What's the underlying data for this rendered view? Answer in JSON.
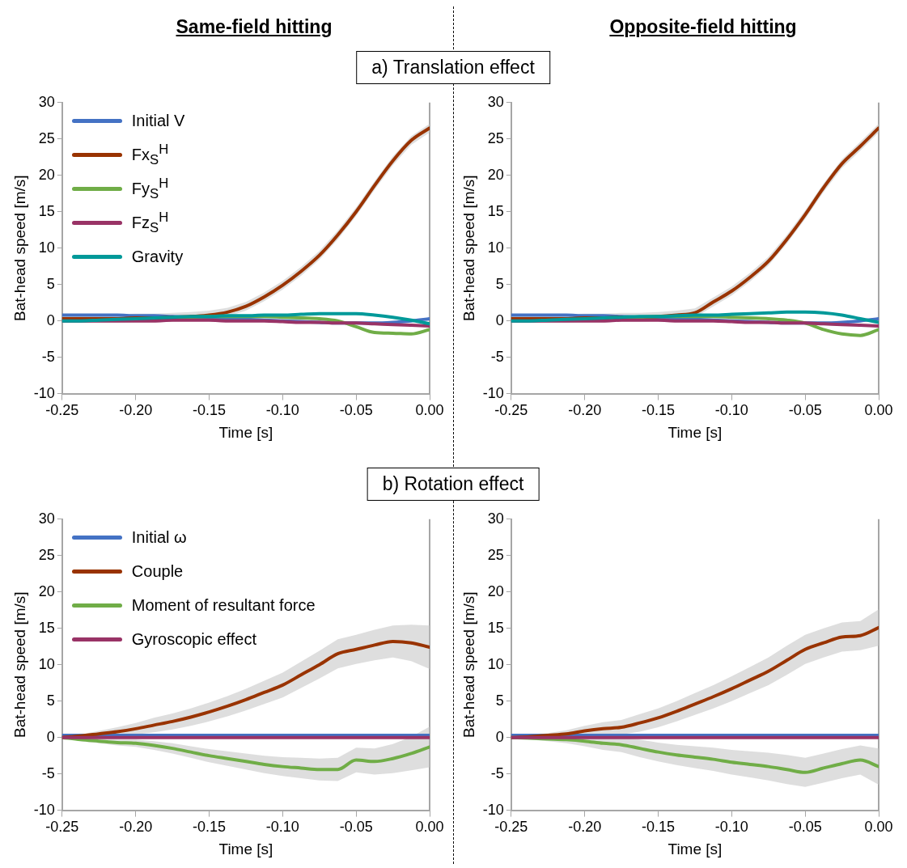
{
  "chart_data": [
    {
      "type": "line",
      "title": "Same-field hitting",
      "subtitle": "a) Translation effect",
      "xlabel": "Time [s]",
      "ylabel": "Bat-head speed [m/s]",
      "xlim": [
        -0.25,
        0
      ],
      "ylim": [
        -10,
        30
      ],
      "xticks": [
        -0.25,
        {
          "value": -0.2,
          "label": "-0.20"
        },
        -0.15,
        {
          "value": -0.1,
          "label": "-0.10"
        },
        -0.05,
        {
          "value": 0,
          "label": "0.00"
        }
      ],
      "yticks": [
        -10,
        -5,
        0,
        5,
        10,
        15,
        20,
        25,
        30
      ],
      "grid": false,
      "legend": "top left",
      "ref_lines": [
        {
          "axis": "x",
          "value": 0,
          "color": "#a6a6a6"
        }
      ],
      "x": [
        -0.25,
        -0.2375,
        -0.225,
        -0.2125,
        -0.2,
        -0.1875,
        -0.175,
        -0.1625,
        -0.15,
        -0.1375,
        -0.125,
        -0.1125,
        -0.1,
        -0.0875,
        -0.075,
        -0.0625,
        -0.05,
        -0.0375,
        -0.025,
        -0.0125,
        0
      ],
      "series": [
        {
          "name": "Initial V",
          "color": "#4472c4",
          "values": [
            0.8,
            0.8,
            0.8,
            0.8,
            0.7,
            0.7,
            0.6,
            0.5,
            0.4,
            0.3,
            0.2,
            0.1,
            0,
            -0.1,
            -0.2,
            -0.3,
            -0.3,
            -0.3,
            -0.2,
            0,
            0.3
          ]
        },
        {
          "name": "Fx$_{S}$$^{H}$",
          "color": "#993300",
          "values": [
            0.3,
            0.3,
            0.3,
            0.3,
            0.4,
            0.4,
            0.5,
            0.6,
            0.8,
            1.2,
            2.0,
            3.3,
            4.9,
            6.8,
            9.0,
            11.8,
            15.0,
            18.6,
            22.0,
            24.8,
            26.5
          ],
          "upper": [
            0.9,
            0.9,
            0.9,
            0.9,
            1.0,
            1.0,
            1.1,
            1.2,
            1.4,
            1.8,
            2.6,
            3.9,
            5.5,
            7.4,
            9.6,
            12.4,
            15.6,
            19.2,
            22.6,
            25.4,
            27.1
          ],
          "lower": [
            -0.3,
            -0.3,
            -0.3,
            -0.3,
            -0.2,
            -0.2,
            -0.1,
            0,
            0.2,
            0.6,
            1.4,
            2.7,
            4.3,
            6.2,
            8.4,
            11.2,
            14.4,
            18.0,
            21.4,
            24.2,
            25.9
          ]
        },
        {
          "name": "Fy$_{S}$$^{H}$",
          "color": "#70ad47",
          "values": [
            null,
            null,
            null,
            null,
            null,
            null,
            0.4,
            0.5,
            0.6,
            0.6,
            0.6,
            0.6,
            0.5,
            0.4,
            0.3,
            0,
            -0.8,
            -1.6,
            -1.7,
            -1.8,
            -1.2
          ]
        },
        {
          "name": "Fz$_{S}$$^{H}$",
          "color": "#993366",
          "values": [
            0,
            0,
            0,
            0,
            0,
            0,
            0.1,
            0.1,
            0.1,
            0,
            0,
            0,
            -0.1,
            -0.2,
            -0.2,
            -0.3,
            -0.3,
            -0.4,
            -0.5,
            -0.6,
            -0.7
          ]
        },
        {
          "name": "Gravity",
          "color": "#009999",
          "values": [
            0,
            0,
            0.1,
            0.2,
            0.3,
            0.4,
            0.5,
            0.6,
            0.6,
            0.7,
            0.7,
            0.8,
            0.8,
            0.9,
            1.0,
            1.0,
            1.0,
            0.8,
            0.5,
            0.1,
            -0.4
          ]
        }
      ]
    },
    {
      "type": "line",
      "title": "Opposite-field hitting",
      "xlabel": "Time [s]",
      "ylabel": "Bat-head speed [m/s]",
      "xlim": [
        -0.25,
        0
      ],
      "ylim": [
        -10,
        30
      ],
      "xticks": [
        -0.25,
        {
          "value": -0.2,
          "label": "-0.20"
        },
        -0.15,
        {
          "value": -0.1,
          "label": "-0.10"
        },
        -0.05,
        {
          "value": 0,
          "label": "0.00"
        }
      ],
      "yticks": [
        -10,
        -5,
        0,
        5,
        10,
        15,
        20,
        25,
        30
      ],
      "grid": false,
      "ref_lines": [
        {
          "axis": "x",
          "value": 0,
          "color": "#a6a6a6"
        }
      ],
      "x": [
        -0.25,
        -0.2375,
        -0.225,
        -0.2125,
        -0.2,
        -0.1875,
        -0.175,
        -0.1625,
        -0.15,
        -0.1375,
        -0.125,
        -0.1125,
        -0.1,
        -0.0875,
        -0.075,
        -0.0625,
        -0.05,
        -0.0375,
        -0.025,
        -0.0125,
        0
      ],
      "series": [
        {
          "color": "#4472c4",
          "values": [
            0.8,
            0.8,
            0.8,
            0.8,
            0.7,
            0.7,
            0.6,
            0.5,
            0.4,
            0.3,
            0.2,
            0.1,
            0,
            -0.1,
            -0.2,
            -0.3,
            -0.3,
            -0.3,
            -0.2,
            0,
            0.3
          ]
        },
        {
          "color": "#993300",
          "values": [
            0.3,
            0.3,
            0.3,
            0.3,
            0.4,
            0.4,
            0.5,
            0.5,
            0.6,
            0.8,
            1.1,
            2.6,
            4.1,
            6.0,
            8.2,
            11.2,
            14.6,
            18.3,
            21.6,
            24.0,
            26.5
          ],
          "upper": [
            0.9,
            0.9,
            0.9,
            0.9,
            1.0,
            1.0,
            1.1,
            1.1,
            1.2,
            1.4,
            1.7,
            3.2,
            4.7,
            6.6,
            8.8,
            11.8,
            15.2,
            18.9,
            22.2,
            24.6,
            27.1
          ],
          "lower": [
            -0.3,
            -0.3,
            -0.3,
            -0.3,
            -0.2,
            -0.2,
            -0.1,
            -0.1,
            0,
            0.2,
            0.5,
            2.0,
            3.5,
            5.4,
            7.6,
            10.6,
            14.0,
            17.7,
            21.0,
            23.4,
            25.9
          ]
        },
        {
          "color": "#70ad47",
          "values": [
            null,
            null,
            null,
            null,
            null,
            null,
            0.4,
            0.5,
            0.6,
            0.6,
            0.6,
            0.6,
            0.5,
            0.4,
            0.3,
            0.1,
            -0.3,
            -1.2,
            -1.8,
            -2.0,
            -1.2
          ]
        },
        {
          "color": "#993366",
          "values": [
            0,
            0,
            0,
            0,
            0,
            0,
            0.1,
            0.1,
            0.1,
            0,
            0,
            0,
            -0.1,
            -0.2,
            -0.2,
            -0.3,
            -0.3,
            -0.4,
            -0.5,
            -0.6,
            -0.7
          ]
        },
        {
          "color": "#009999",
          "values": [
            0,
            0,
            0.1,
            0.2,
            0.3,
            0.4,
            0.5,
            0.6,
            0.6,
            0.7,
            0.8,
            0.8,
            0.9,
            1.0,
            1.1,
            1.2,
            1.2,
            1.1,
            0.8,
            0.3,
            -0.2
          ]
        }
      ]
    },
    {
      "type": "line",
      "subtitle": "b) Rotation effect",
      "xlabel": "Time [s]",
      "ylabel": "Bat-head speed [m/s]",
      "xlim": [
        -0.25,
        0
      ],
      "ylim": [
        -10,
        30
      ],
      "xticks": [
        -0.25,
        {
          "value": -0.2,
          "label": "-0.20"
        },
        -0.15,
        {
          "value": -0.1,
          "label": "-0.10"
        },
        -0.05,
        {
          "value": 0,
          "label": "0.00"
        }
      ],
      "yticks": [
        -10,
        -5,
        0,
        5,
        10,
        15,
        20,
        25,
        30
      ],
      "grid": false,
      "legend": "top left",
      "ref_lines": [
        {
          "axis": "x",
          "value": 0,
          "color": "#a6a6a6"
        }
      ],
      "x": [
        -0.25,
        -0.2375,
        -0.225,
        -0.2125,
        -0.2,
        -0.1875,
        -0.175,
        -0.1625,
        -0.15,
        -0.1375,
        -0.125,
        -0.1125,
        -0.1,
        -0.0875,
        -0.075,
        -0.0625,
        -0.05,
        -0.0375,
        -0.025,
        -0.0125,
        0
      ],
      "series": [
        {
          "name": "Initial ω",
          "color": "#4472c4",
          "values": [
            0.3,
            0.3,
            0.3,
            0.3,
            0.3,
            0.3,
            0.3,
            0.3,
            0.3,
            0.3,
            0.3,
            0.3,
            0.3,
            0.3,
            0.3,
            0.3,
            0.3,
            0.3,
            0.3,
            0.3,
            0.3
          ]
        },
        {
          "name": "Couple",
          "color": "#993300",
          "values": [
            0,
            0.2,
            0.5,
            0.8,
            1.2,
            1.7,
            2.2,
            2.8,
            3.5,
            4.3,
            5.2,
            6.2,
            7.2,
            8.6,
            10.0,
            11.5,
            12.1,
            12.7,
            13.2,
            13.0,
            12.4
          ],
          "upper": [
            0,
            0.4,
            0.9,
            1.4,
            2.0,
            2.7,
            3.3,
            4.0,
            4.8,
            5.7,
            6.7,
            7.8,
            8.9,
            10.4,
            11.9,
            13.5,
            14.1,
            14.8,
            15.4,
            15.5,
            15.4
          ],
          "lower": [
            0,
            0,
            0.1,
            0.2,
            0.4,
            0.7,
            1.1,
            1.6,
            2.2,
            2.9,
            3.7,
            4.6,
            5.5,
            6.8,
            8.1,
            9.5,
            10.1,
            10.6,
            11.0,
            10.5,
            9.4
          ]
        },
        {
          "name": "Moment of resultant force",
          "color": "#70ad47",
          "values": [
            0,
            -0.3,
            -0.5,
            -0.7,
            -0.8,
            -1.1,
            -1.5,
            -2.0,
            -2.5,
            -2.9,
            -3.3,
            -3.7,
            -4.0,
            -4.2,
            -4.4,
            -4.4,
            -3.1,
            -3.3,
            -2.9,
            -2.2,
            -1.3
          ],
          "upper": [
            0,
            -0.1,
            -0.2,
            -0.3,
            -0.3,
            -0.5,
            -0.8,
            -1.2,
            -1.6,
            -1.9,
            -2.2,
            -2.5,
            -2.7,
            -2.8,
            -2.9,
            -2.8,
            -1.4,
            -1.5,
            -0.9,
            0.1,
            1.5
          ],
          "lower": [
            0,
            -0.5,
            -0.8,
            -1.1,
            -1.3,
            -1.7,
            -2.2,
            -2.8,
            -3.4,
            -3.9,
            -4.4,
            -4.9,
            -5.3,
            -5.6,
            -5.9,
            -6.0,
            -4.8,
            -5.1,
            -4.9,
            -4.5,
            -4.1
          ]
        },
        {
          "name": "Gyroscopic effect",
          "color": "#993366",
          "values": [
            0,
            0,
            0,
            0,
            0,
            0,
            0,
            0,
            0,
            0,
            0,
            0,
            0,
            0,
            0,
            0,
            0,
            0,
            0,
            0,
            0
          ]
        }
      ]
    },
    {
      "type": "line",
      "xlabel": "Time [s]",
      "ylabel": "Bat-head speed [m/s]",
      "xlim": [
        -0.25,
        0
      ],
      "ylim": [
        -10,
        30
      ],
      "xticks": [
        -0.25,
        {
          "value": -0.2,
          "label": "-0.20"
        },
        -0.15,
        {
          "value": -0.1,
          "label": "-0.10"
        },
        -0.05,
        {
          "value": 0,
          "label": "0.00"
        }
      ],
      "yticks": [
        -10,
        -5,
        0,
        5,
        10,
        15,
        20,
        25,
        30
      ],
      "grid": false,
      "ref_lines": [
        {
          "axis": "x",
          "value": 0,
          "color": "#a6a6a6"
        }
      ],
      "x": [
        -0.25,
        -0.2375,
        -0.225,
        -0.2125,
        -0.2,
        -0.1875,
        -0.175,
        -0.1625,
        -0.15,
        -0.1375,
        -0.125,
        -0.1125,
        -0.1,
        -0.0875,
        -0.075,
        -0.0625,
        -0.05,
        -0.0375,
        -0.025,
        -0.0125,
        0
      ],
      "series": [
        {
          "color": "#4472c4",
          "values": [
            0.3,
            0.3,
            0.3,
            0.3,
            0.3,
            0.3,
            0.3,
            0.3,
            0.3,
            0.3,
            0.3,
            0.3,
            0.3,
            0.3,
            0.3,
            0.3,
            0.3,
            0.3,
            0.3,
            0.3,
            0.3
          ]
        },
        {
          "color": "#993300",
          "values": [
            0,
            0.1,
            0.3,
            0.5,
            0.9,
            1.2,
            1.4,
            2.0,
            2.7,
            3.6,
            4.6,
            5.6,
            6.7,
            7.9,
            9.1,
            10.6,
            12.1,
            13.0,
            13.8,
            14.0,
            15.1
          ],
          "upper": [
            0,
            0.3,
            0.6,
            1.0,
            1.6,
            2.1,
            2.4,
            3.2,
            4.0,
            5.0,
            6.1,
            7.2,
            8.4,
            9.7,
            11.0,
            12.6,
            14.1,
            15.0,
            15.8,
            16.0,
            17.6
          ],
          "lower": [
            0,
            -0.1,
            0,
            0,
            0.2,
            0.3,
            0.4,
            0.8,
            1.4,
            2.2,
            3.1,
            4.0,
            5.0,
            6.1,
            7.2,
            8.6,
            10.1,
            11.0,
            11.8,
            12.0,
            12.6
          ]
        },
        {
          "color": "#70ad47",
          "values": [
            0,
            -0.1,
            -0.2,
            -0.3,
            -0.5,
            -0.8,
            -1.0,
            -1.5,
            -2.0,
            -2.4,
            -2.7,
            -3.0,
            -3.4,
            -3.7,
            -4.0,
            -4.4,
            -4.8,
            -4.2,
            -3.6,
            -3.1,
            -4.0
          ],
          "upper": [
            0,
            0.1,
            0.1,
            0.2,
            0.3,
            0.1,
            0,
            -0.3,
            -0.7,
            -1.0,
            -1.2,
            -1.4,
            -1.7,
            -1.9,
            -2.1,
            -2.4,
            -2.8,
            -2.2,
            -1.6,
            -1.1,
            -1.5
          ],
          "lower": [
            0,
            -0.3,
            -0.5,
            -0.8,
            -1.2,
            -1.7,
            -2.0,
            -2.7,
            -3.3,
            -3.8,
            -4.2,
            -4.6,
            -5.1,
            -5.5,
            -5.9,
            -6.4,
            -6.8,
            -6.2,
            -5.6,
            -5.1,
            -6.5
          ]
        },
        {
          "color": "#993366",
          "values": [
            0,
            0,
            0,
            0,
            0,
            0,
            0,
            0,
            0,
            0,
            0,
            0,
            0,
            0,
            0,
            0,
            0,
            0,
            0,
            0,
            0
          ]
        }
      ]
    }
  ]
}
